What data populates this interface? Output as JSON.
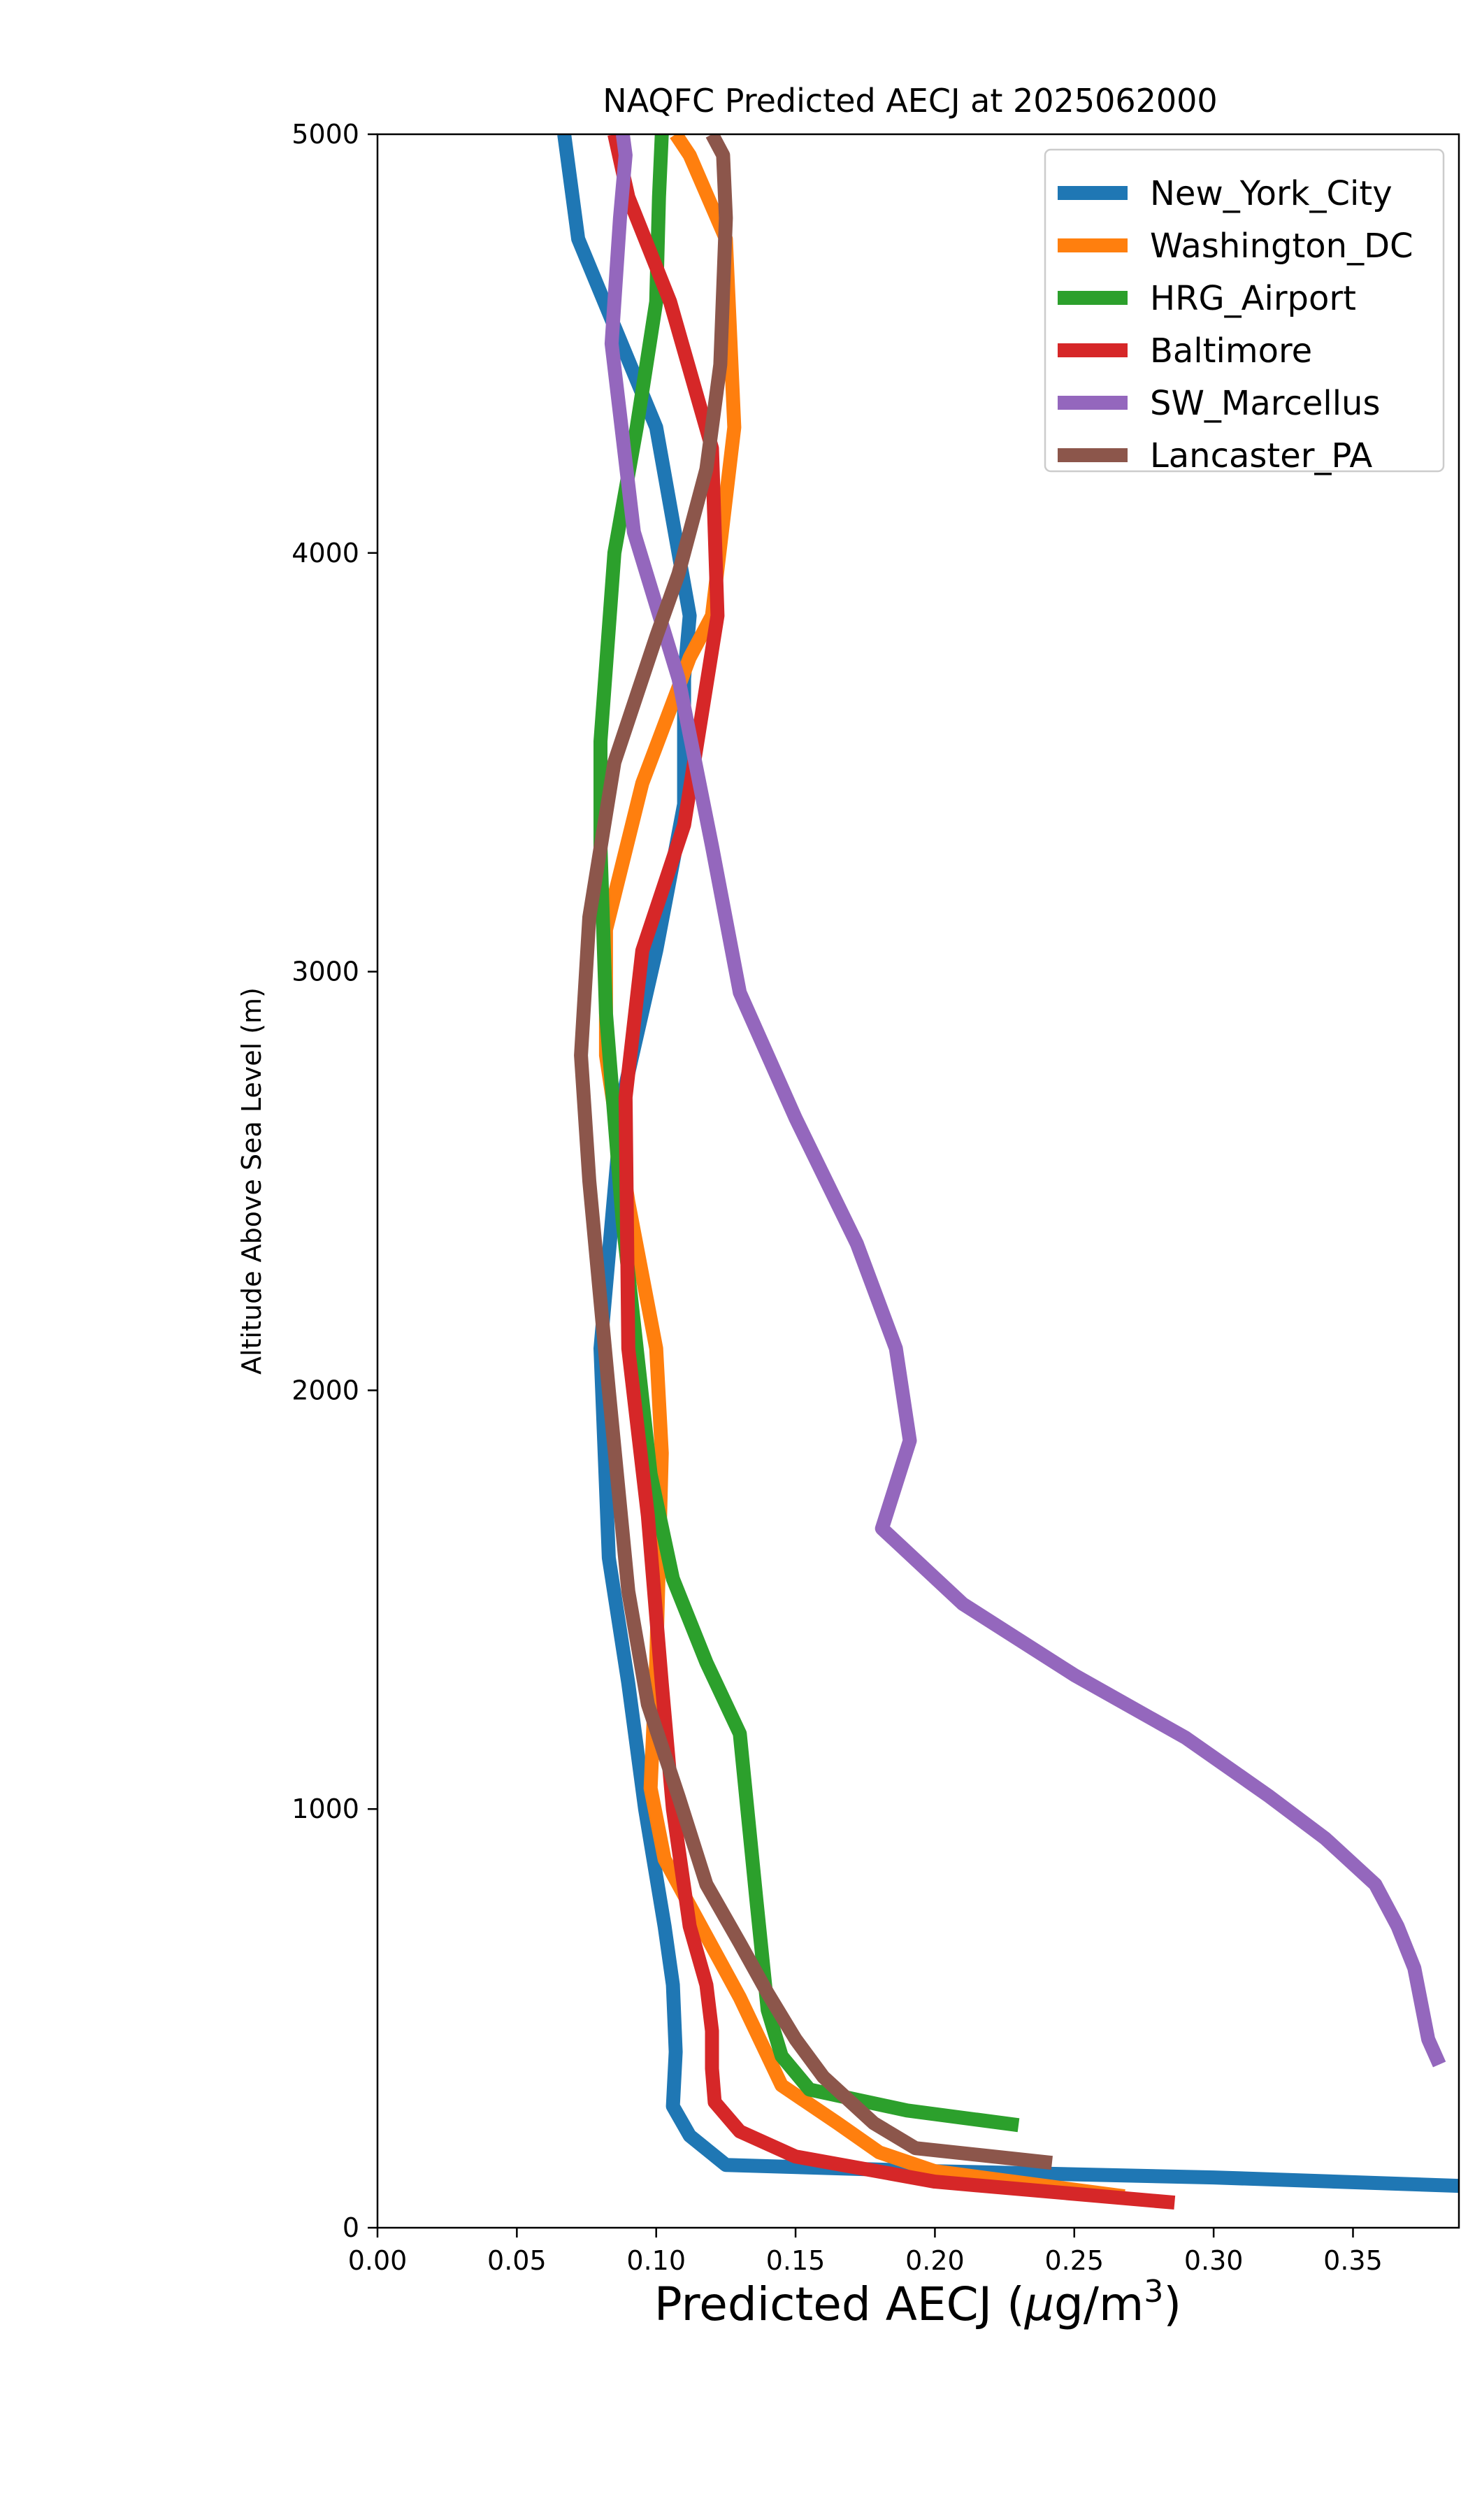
{
  "chart_data": {
    "type": "line",
    "title": "NAQFC Predicted AECJ at 2025062000",
    "xlabel": "Predicted AECJ",
    "xlabel_unit_prefix": "μg/m",
    "xlabel_unit_exp": "3",
    "ylabel": "Altitude Above Sea Level (m)",
    "xlim": [
      0,
      0.388
    ],
    "ylim": [
      0,
      5000
    ],
    "xticks": [
      "0.00",
      "0.05",
      "0.10",
      "0.15",
      "0.20",
      "0.25",
      "0.30",
      "0.35"
    ],
    "xtick_values": [
      0,
      0.05,
      0.1,
      0.15,
      0.2,
      0.25,
      0.3,
      0.35
    ],
    "yticks": [
      "0",
      "1000",
      "2000",
      "3000",
      "4000",
      "5000"
    ],
    "ytick_values": [
      0,
      1000,
      2000,
      3000,
      4000,
      5000
    ],
    "grid": false,
    "legend_position": "top-right",
    "series": [
      {
        "name": "New_York_City",
        "color": "#1f77b4",
        "x": [
          0.388,
          0.3,
          0.2,
          0.125,
          0.112,
          0.106,
          0.107,
          0.106,
          0.103,
          0.096,
          0.09,
          0.083,
          0.08,
          0.088,
          0.1,
          0.11,
          0.11,
          0.112,
          0.1,
          0.072,
          0.067
        ],
        "y": [
          100,
          120,
          135,
          150,
          220,
          290,
          420,
          580,
          720,
          1000,
          1300,
          1600,
          2100,
          2700,
          3050,
          3400,
          3700,
          3850,
          4300,
          4750,
          5000
        ]
      },
      {
        "name": "Washington_DC",
        "color": "#ff7f0e",
        "x": [
          0.268,
          0.2,
          0.18,
          0.165,
          0.145,
          0.13,
          0.103,
          0.098,
          0.1,
          0.102,
          0.1,
          0.09,
          0.082,
          0.082,
          0.095,
          0.112,
          0.12,
          0.128,
          0.125,
          0.112,
          0.107
        ],
        "y": [
          75,
          135,
          180,
          250,
          340,
          550,
          880,
          1050,
          1350,
          1850,
          2100,
          2450,
          2800,
          3100,
          3450,
          3750,
          3850,
          4300,
          4750,
          4950,
          5000
        ]
      },
      {
        "name": "HRG_Airport",
        "color": "#2ca02c",
        "x": [
          0.23,
          0.19,
          0.155,
          0.145,
          0.14,
          0.136,
          0.13,
          0.118,
          0.106,
          0.098,
          0.088,
          0.082,
          0.08,
          0.08,
          0.085,
          0.093,
          0.1,
          0.101,
          0.102
        ],
        "y": [
          245,
          280,
          330,
          410,
          520,
          780,
          1180,
          1350,
          1550,
          1800,
          2400,
          2900,
          3300,
          3550,
          4000,
          4300,
          4600,
          4850,
          5000
        ]
      },
      {
        "name": "Baltimore",
        "color": "#d62728",
        "x": [
          0.286,
          0.2,
          0.15,
          0.13,
          0.121,
          0.12,
          0.12,
          0.118,
          0.112,
          0.106,
          0.102,
          0.097,
          0.09,
          0.089,
          0.095,
          0.11,
          0.122,
          0.12,
          0.105,
          0.09,
          0.085
        ],
        "y": [
          60,
          110,
          170,
          230,
          300,
          380,
          470,
          580,
          720,
          1000,
          1300,
          1700,
          2100,
          2700,
          3050,
          3350,
          3850,
          4250,
          4600,
          4850,
          5000
        ]
      },
      {
        "name": "SW_Marcellus",
        "color": "#9467bd",
        "x": [
          0.381,
          0.377,
          0.372,
          0.366,
          0.358,
          0.34,
          0.32,
          0.29,
          0.25,
          0.21,
          0.181,
          0.191,
          0.186,
          0.172,
          0.15,
          0.13,
          0.12,
          0.108,
          0.092,
          0.084,
          0.087,
          0.089,
          0.088
        ],
        "y": [
          390,
          450,
          620,
          720,
          820,
          930,
          1030,
          1170,
          1320,
          1490,
          1670,
          1880,
          2100,
          2350,
          2650,
          2950,
          3300,
          3700,
          4050,
          4500,
          4800,
          4950,
          5000
        ]
      },
      {
        "name": "Lancaster_PA",
        "color": "#8c564b",
        "x": [
          0.242,
          0.193,
          0.178,
          0.16,
          0.15,
          0.14,
          0.13,
          0.118,
          0.108,
          0.097,
          0.09,
          0.083,
          0.076,
          0.073,
          0.076,
          0.085,
          0.1,
          0.108,
          0.118,
          0.123,
          0.125,
          0.124,
          0.12
        ],
        "y": [
          155,
          190,
          250,
          360,
          450,
          560,
          680,
          820,
          1030,
          1250,
          1520,
          2000,
          2500,
          2800,
          3130,
          3500,
          3800,
          3950,
          4200,
          4450,
          4800,
          4950,
          5000
        ]
      }
    ]
  }
}
